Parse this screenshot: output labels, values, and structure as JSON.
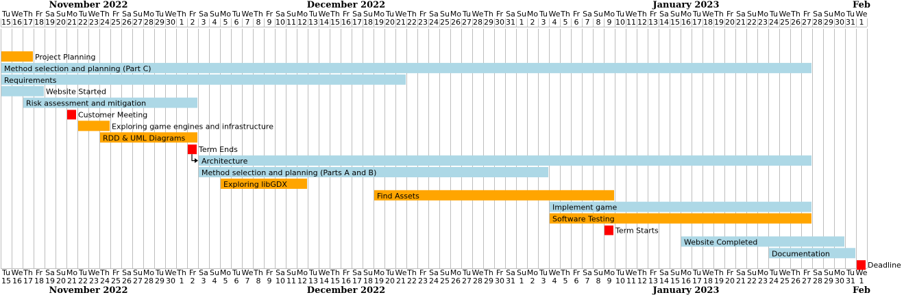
{
  "chart_data": {
    "type": "gantt",
    "timeline": {
      "start": "2022-11-15",
      "end": "2023-02-01",
      "months": [
        {
          "label": "November 2022",
          "start": "2022-11-15"
        },
        {
          "label": "December 2022",
          "start": "2022-12-01"
        },
        {
          "label": "January 2023",
          "start": "2023-01-01"
        },
        {
          "label": "Feb",
          "start": "2023-02-01"
        }
      ],
      "day_abbreviations": [
        "Su",
        "Mo",
        "Tu",
        "We",
        "Th",
        "Fr",
        "Sa"
      ]
    },
    "colors": {
      "task": "#add8e6",
      "highlight": "#ffa500",
      "milestone": "#ff0000",
      "grid": "#bdbdbd",
      "text": "#000000"
    },
    "tasks": [
      {
        "label": "Project Planning",
        "start": "2022-11-15",
        "end": "2022-11-17",
        "style": "highlight"
      },
      {
        "label": "Method selection and planning (Part C)",
        "start": "2022-11-15",
        "end": "2023-01-27",
        "style": "task"
      },
      {
        "label": "Requirements",
        "start": "2022-11-15",
        "end": "2022-12-21",
        "style": "task"
      },
      {
        "label": "Website Started",
        "start": "2022-11-15",
        "end": "2022-11-18",
        "style": "task"
      },
      {
        "label": "Risk assessment and mitigation",
        "start": "2022-11-17",
        "end": "2022-12-02",
        "style": "task"
      },
      {
        "label": "Customer Meeting",
        "date": "2022-11-21",
        "style": "milestone"
      },
      {
        "label": "Exploring game engines and infrastructure",
        "start": "2022-11-22",
        "end": "2022-11-24",
        "style": "highlight"
      },
      {
        "label": "RDD & UML Diagrams",
        "start": "2022-11-24",
        "end": "2022-12-02",
        "style": "highlight"
      },
      {
        "label": "Term Ends",
        "date": "2022-12-02",
        "style": "milestone"
      },
      {
        "label": "Architecture",
        "start": "2022-12-03",
        "end": "2023-01-27",
        "style": "task",
        "depends_on": "Term Ends"
      },
      {
        "label": "Method selection and planning (Parts A and B)",
        "start": "2022-12-03",
        "end": "2023-01-03",
        "style": "task"
      },
      {
        "label": "Exploring libGDX",
        "start": "2022-12-05",
        "end": "2022-12-12",
        "style": "highlight"
      },
      {
        "label": "Find Assets",
        "start": "2022-12-19",
        "end": "2023-01-09",
        "style": "highlight"
      },
      {
        "label": "Implement game",
        "start": "2023-01-04",
        "end": "2023-01-27",
        "style": "task"
      },
      {
        "label": "Software Testing",
        "start": "2023-01-04",
        "end": "2023-01-27",
        "style": "highlight"
      },
      {
        "label": "Term Starts",
        "date": "2023-01-09",
        "style": "milestone"
      },
      {
        "label": "Website Completed",
        "start": "2023-01-16",
        "end": "2023-01-30",
        "style": "task"
      },
      {
        "label": "Documentation",
        "start": "2023-01-24",
        "end": "2023-01-31",
        "style": "task"
      },
      {
        "label": "Deadline",
        "date": "2023-02-01",
        "style": "milestone"
      }
    ]
  }
}
